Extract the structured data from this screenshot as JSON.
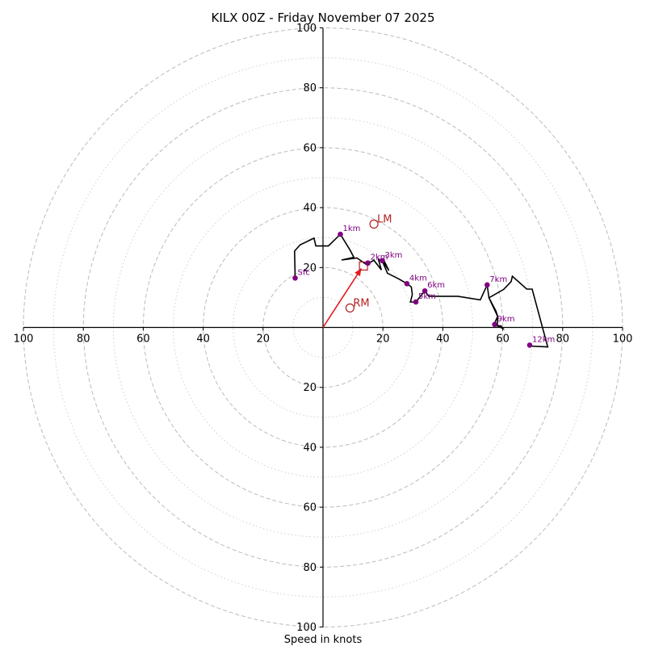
{
  "chart_data": {
    "type": "scatter",
    "subtype": "hodograph",
    "title": "KILX 00Z - Friday November 07 2025",
    "xlabel": "Speed in knots",
    "ylabel": "",
    "xlim": [
      -100,
      100
    ],
    "ylim": [
      -100,
      100
    ],
    "x_ticks": [
      "100",
      "80",
      "60",
      "40",
      "20",
      "20",
      "40",
      "60",
      "80",
      "100"
    ],
    "y_ticks": [
      "100",
      "80",
      "60",
      "40",
      "20",
      "20",
      "40",
      "60",
      "80",
      "100"
    ],
    "rings_dashed": [
      20,
      40,
      60,
      80,
      100
    ],
    "rings_dotted": [
      10,
      30,
      50,
      70,
      90
    ],
    "hodograph_trace": [
      [
        -9.3,
        16.5
      ],
      [
        -9.5,
        25.5
      ],
      [
        -7.6,
        27.6
      ],
      [
        -3.0,
        29.8
      ],
      [
        -2.4,
        27.2
      ],
      [
        1.8,
        27.2
      ],
      [
        5.8,
        31.1
      ],
      [
        9.1,
        25.7
      ],
      [
        10.3,
        23.4
      ],
      [
        6.2,
        22.5
      ],
      [
        11.3,
        23.2
      ],
      [
        14.8,
        20.8
      ],
      [
        16.0,
        21.9
      ],
      [
        17.0,
        22.4
      ],
      [
        19.5,
        19.2
      ],
      [
        18.5,
        22.7
      ],
      [
        20.3,
        22.4
      ],
      [
        22.0,
        19.0
      ],
      [
        19.6,
        22.6
      ],
      [
        21.5,
        18.1
      ],
      [
        25.5,
        16.1
      ],
      [
        28.0,
        14.6
      ],
      [
        29.5,
        13.5
      ],
      [
        29.8,
        11.0
      ],
      [
        29.2,
        8.5
      ],
      [
        31.0,
        8.5
      ],
      [
        34.0,
        12.2
      ],
      [
        35.3,
        10.4
      ],
      [
        39.0,
        10.4
      ],
      [
        45.0,
        10.4
      ],
      [
        52.5,
        9.2
      ],
      [
        54.8,
        14.2
      ],
      [
        55.4,
        9.9
      ],
      [
        58.3,
        3.7
      ],
      [
        57.3,
        1.5
      ],
      [
        58.6,
        0.5
      ],
      [
        59.4,
        0.5
      ],
      [
        60.0,
        -0.3
      ],
      [
        58.2,
        0.5
      ],
      [
        58.3,
        3.7
      ],
      [
        57.7,
        5.5
      ],
      [
        55.4,
        9.9
      ],
      [
        60.3,
        12.7
      ],
      [
        62.8,
        15.3
      ],
      [
        63.2,
        17.1
      ],
      [
        68.0,
        12.8
      ],
      [
        69.8,
        12.8
      ],
      [
        75.0,
        -6.5
      ],
      [
        68.8,
        -6.2
      ]
    ],
    "height_labels": [
      {
        "label": "Sfc",
        "x": -9.3,
        "y": 16.5
      },
      {
        "label": "1km",
        "x": 5.8,
        "y": 31.1
      },
      {
        "label": "2km",
        "x": 15.0,
        "y": 21.5
      },
      {
        "label": "3km",
        "x": 19.8,
        "y": 22.3
      },
      {
        "label": "4km",
        "x": 28.0,
        "y": 14.6
      },
      {
        "label": "5km",
        "x": 31.0,
        "y": 8.5
      },
      {
        "label": "6km",
        "x": 34.0,
        "y": 12.2
      },
      {
        "label": "7km",
        "x": 54.8,
        "y": 14.2
      },
      {
        "label": "9km",
        "x": 57.3,
        "y": 1.0
      },
      {
        "label": "12km",
        "x": 69.0,
        "y": -5.9
      }
    ],
    "height_marker_color": "#800080",
    "storm_motion": {
      "rm": {
        "label": "RM",
        "x": 9.0,
        "y": 6.5
      },
      "lm": {
        "label": "LM",
        "x": 17.0,
        "y": 34.5
      },
      "mean_wind": {
        "x": 13.5,
        "y": 20.5
      },
      "arrow": {
        "from": [
          0,
          0
        ],
        "to": [
          12.8,
          19.7
        ]
      },
      "color": "#b22222"
    },
    "trace_color": "#000000",
    "arrow_color": "#e31a1c",
    "grid": true
  }
}
